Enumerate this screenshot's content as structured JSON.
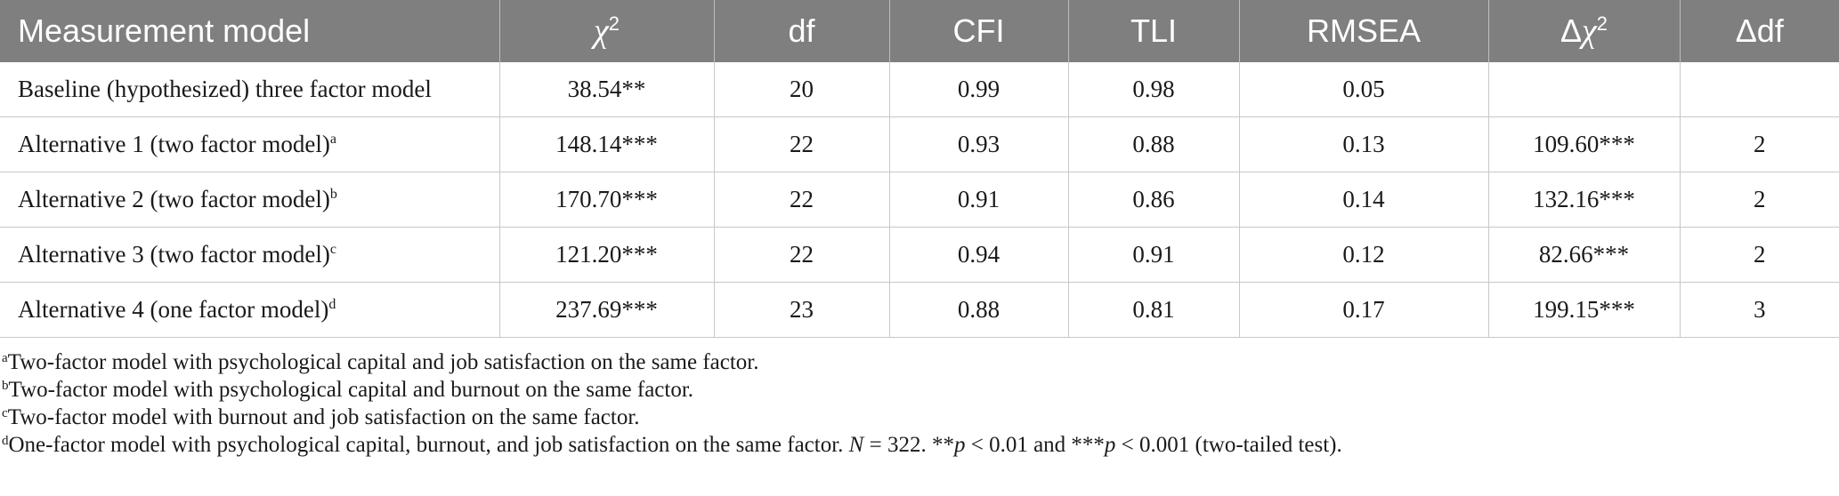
{
  "table": {
    "headers": {
      "model": "Measurement model",
      "chi_symbol": "χ",
      "chi_exp": "2",
      "df": "df",
      "cfi": "CFI",
      "tli": "TLI",
      "rmsea": "RMSEA",
      "delta_chi_prefix": "Δ",
      "delta_chi_symbol": "χ",
      "delta_chi_exp": "2",
      "delta_df": "Δdf"
    },
    "rows": [
      {
        "model": "Baseline (hypothesized) three factor model",
        "mark": "",
        "chi2": "38.54**",
        "df": "20",
        "cfi": "0.99",
        "tli": "0.98",
        "rmsea": "0.05",
        "delta_chi2": "",
        "delta_df": ""
      },
      {
        "model": "Alternative 1 (two factor model)",
        "mark": "a",
        "chi2": "148.14***",
        "df": "22",
        "cfi": "0.93",
        "tli": "0.88",
        "rmsea": "0.13",
        "delta_chi2": "109.60***",
        "delta_df": "2"
      },
      {
        "model": "Alternative 2 (two factor model)",
        "mark": "b",
        "chi2": "170.70***",
        "df": "22",
        "cfi": "0.91",
        "tli": "0.86",
        "rmsea": "0.14",
        "delta_chi2": "132.16***",
        "delta_df": "2"
      },
      {
        "model": "Alternative 3 (two factor model)",
        "mark": "c",
        "chi2": "121.20***",
        "df": "22",
        "cfi": "0.94",
        "tli": "0.91",
        "rmsea": "0.12",
        "delta_chi2": "82.66***",
        "delta_df": "2"
      },
      {
        "model": "Alternative 4 (one factor model)",
        "mark": "d",
        "chi2": "237.69***",
        "df": "23",
        "cfi": "0.88",
        "tli": "0.81",
        "rmsea": "0.17",
        "delta_chi2": "199.15***",
        "delta_df": "3"
      }
    ]
  },
  "notes": {
    "a": {
      "mark": "a",
      "text": "Two-factor model with psychological capital and job satisfaction on the same factor."
    },
    "b": {
      "mark": "b",
      "text": "Two-factor model with psychological capital and burnout on the same factor."
    },
    "c": {
      "mark": "c",
      "text": "Two-factor model with burnout and job satisfaction on the same factor."
    },
    "d": {
      "mark": "d",
      "text": "One-factor model with psychological capital, burnout, and job satisfaction on the same factor. ",
      "n_symbol": "N",
      "n_value": " = 322. **",
      "p1_symbol": "p",
      "p1_value": " < 0.01 and ***",
      "p2_symbol": "p",
      "p2_value": " < 0.001 (two-tailed test)."
    }
  }
}
